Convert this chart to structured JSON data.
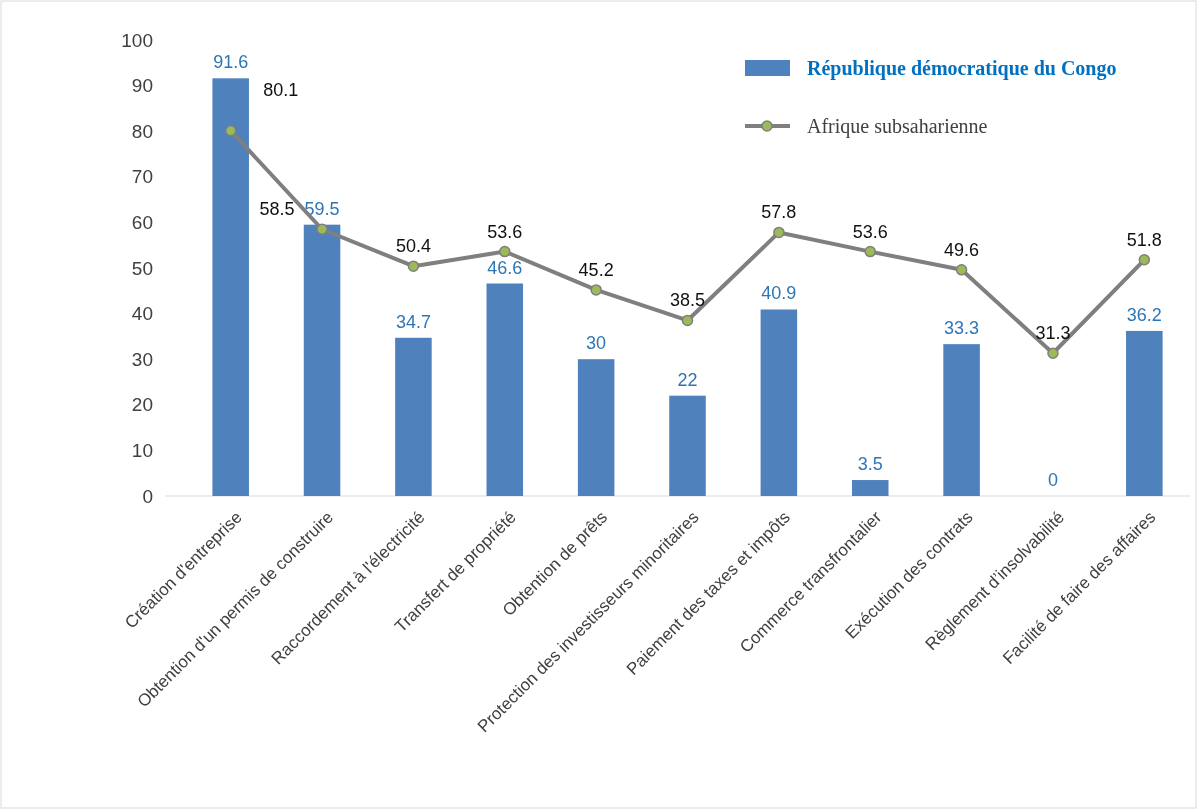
{
  "chart_data": {
    "type": "bar",
    "categories": [
      "Création d'entreprise",
      "Obtention d'un permis de construire",
      "Raccordement à l'électricité",
      "Transfert de propriété",
      "Obtention de prêts",
      "Protection des investisseurs minoritaires",
      "Paiement des taxes et impôts",
      "Commerce transfrontalier",
      "Exécution des contrats",
      "Règlement d’insolvabilité",
      "Facilité de faire des affaires"
    ],
    "series": [
      {
        "name": "République démocratique du Congo",
        "color": "#4f81bd",
        "values": [
          91.6,
          59.5,
          34.7,
          46.6,
          30,
          22,
          40.9,
          3.5,
          33.3,
          0,
          36.2
        ]
      },
      {
        "name": "Afrique subsaharienne",
        "type": "line",
        "color": "#7f7f7f",
        "marker": "circle",
        "values": [
          80.1,
          58.5,
          50.4,
          53.6,
          45.2,
          38.5,
          57.8,
          53.6,
          49.6,
          31.3,
          51.8
        ]
      }
    ],
    "ylim": [
      0,
      100
    ],
    "yticks": [
      0,
      10,
      20,
      30,
      40,
      50,
      60,
      70,
      80,
      90,
      100
    ],
    "data_labels": true,
    "legend": "top right",
    "grid": false
  }
}
